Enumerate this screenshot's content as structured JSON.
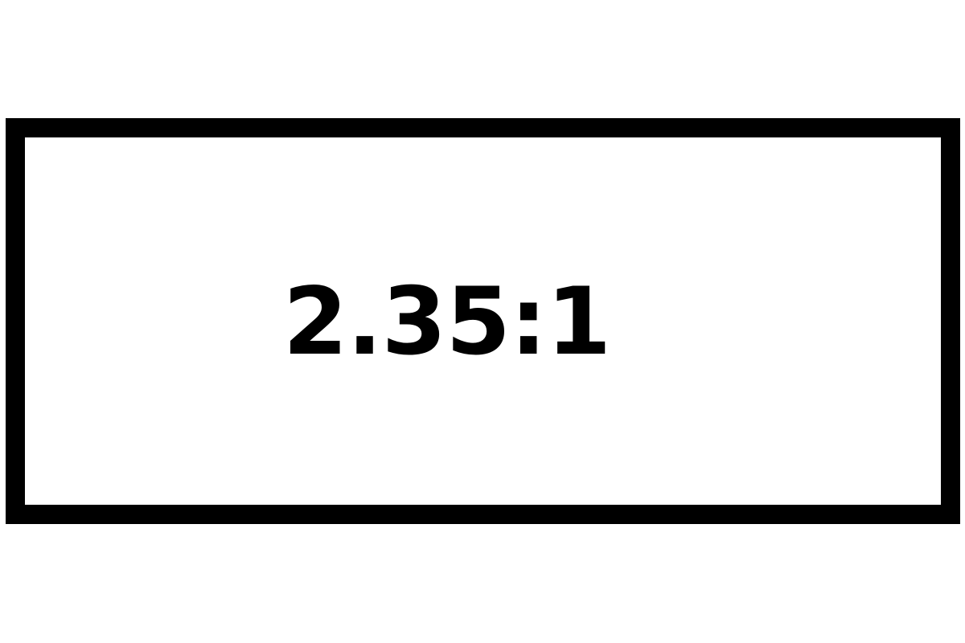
{
  "diagram": {
    "label": "2.35:1",
    "colors": {
      "background": "#ffffff",
      "frame": "#000000",
      "text": "#000000"
    }
  }
}
